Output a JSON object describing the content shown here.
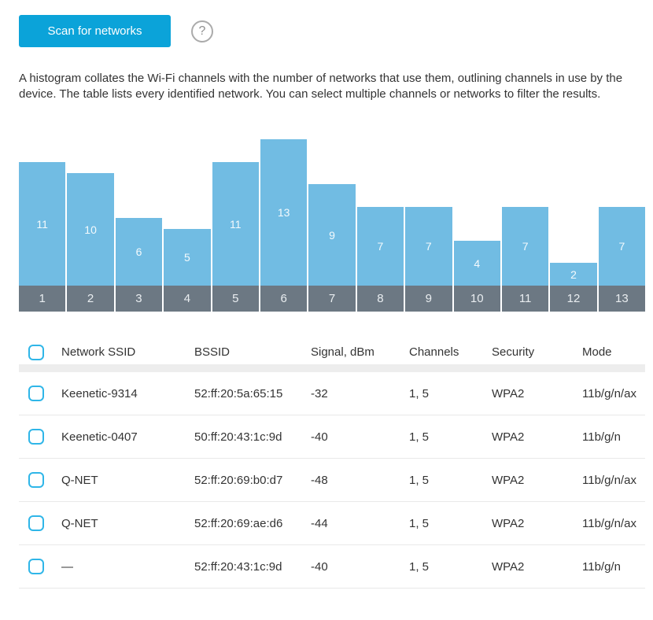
{
  "toolbar": {
    "scan_button_label": "Scan for networks",
    "help_label": "?"
  },
  "description": "A histogram collates the Wi-Fi channels with the number of networks that use them, outlining channels in use by the device. The table lists every identified network. You can select multiple channels or networks to filter the results.",
  "colors": {
    "accent": "#0ba3d9",
    "bar_fill": "#71bce3",
    "channel_band": "#6c7883",
    "checkbox_border": "#2fb6e8"
  },
  "chart_data": {
    "type": "bar",
    "categories": [
      "1",
      "2",
      "3",
      "4",
      "5",
      "6",
      "7",
      "8",
      "9",
      "10",
      "11",
      "12",
      "13"
    ],
    "values": [
      11,
      10,
      6,
      5,
      11,
      13,
      9,
      7,
      7,
      4,
      7,
      2,
      7
    ],
    "title": "",
    "xlabel": "",
    "ylabel": "",
    "ylim": [
      0,
      13
    ],
    "bar_labels_shown": true,
    "legend": "none",
    "grid": false
  },
  "table": {
    "columns": [
      {
        "key": "ssid",
        "label": "Network SSID"
      },
      {
        "key": "bssid",
        "label": "BSSID"
      },
      {
        "key": "signal",
        "label": "Signal, dBm"
      },
      {
        "key": "channels",
        "label": "Channels"
      },
      {
        "key": "security",
        "label": "Security"
      },
      {
        "key": "mode",
        "label": "Mode"
      }
    ],
    "rows": [
      {
        "ssid": "Keenetic-9314",
        "bssid": "52:ff:20:5a:65:15",
        "signal": "-32",
        "channels": "1, 5",
        "security": "WPA2",
        "mode": "11b/g/n/ax"
      },
      {
        "ssid": "Keenetic-0407",
        "bssid": "50:ff:20:43:1c:9d",
        "signal": "-40",
        "channels": "1, 5",
        "security": "WPA2",
        "mode": "11b/g/n"
      },
      {
        "ssid": "Q-NET",
        "bssid": "52:ff:20:69:b0:d7",
        "signal": "-48",
        "channels": "1, 5",
        "security": "WPA2",
        "mode": "11b/g/n/ax"
      },
      {
        "ssid": "Q-NET",
        "bssid": "52:ff:20:69:ae:d6",
        "signal": "-44",
        "channels": "1, 5",
        "security": "WPA2",
        "mode": "11b/g/n/ax"
      },
      {
        "ssid": "—",
        "bssid": "52:ff:20:43:1c:9d",
        "signal": "-40",
        "channels": "1, 5",
        "security": "WPA2",
        "mode": "11b/g/n"
      }
    ]
  }
}
